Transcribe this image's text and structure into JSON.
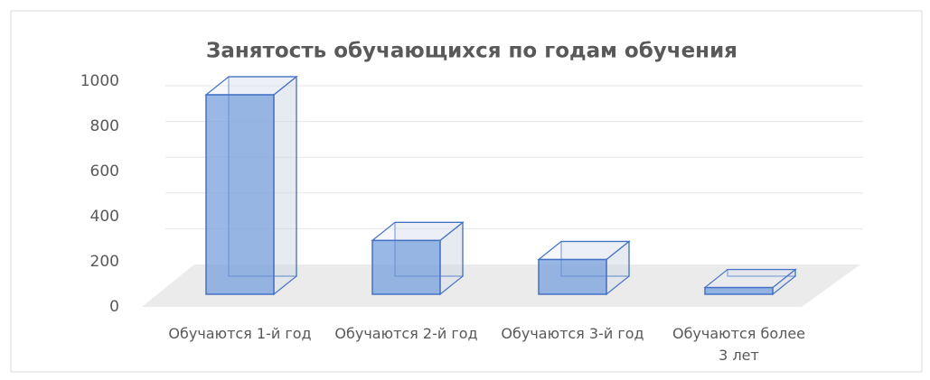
{
  "chart_data": {
    "type": "bar3d",
    "title": "Занятость обучающихся по годам обучения",
    "categories": [
      "Обучаются 1-й год",
      "Обучаются 2-й год",
      "Обучаются 3-й год",
      "Обучаются более 3 лет"
    ],
    "values": [
      890,
      240,
      155,
      30
    ],
    "color": "#4472c4",
    "ylim": [
      0,
      1000
    ],
    "yticks": [
      0,
      200,
      400,
      600,
      800,
      1000
    ],
    "grid": true
  }
}
